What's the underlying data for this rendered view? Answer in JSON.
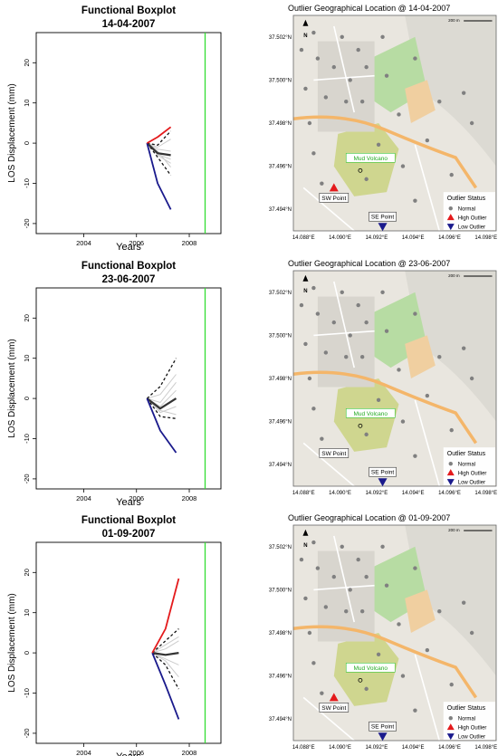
{
  "colors": {
    "high": "#e41a1c",
    "low": "#1a1a8c",
    "median": "#333333",
    "bound": "#111111",
    "curve": "#cccccc",
    "vline": "#33dd33",
    "map_land": "#e9e6df",
    "map_green": "#b7dca3",
    "map_olive": "#cfd68f",
    "map_orange": "#f0cfa0",
    "map_road": "#f4b66a",
    "normal_point": "#808080"
  },
  "chart_data": [
    {
      "type": "line",
      "title": "Functional Boxplot",
      "subtitle": "14-04-2007",
      "xlabel": "Years",
      "ylabel": "LOS Displacement (mm)",
      "xlim": [
        2002.2,
        2009.2
      ],
      "ylim": [
        -22.5,
        27.5
      ],
      "xticks": [
        "2004",
        "2006",
        "2008"
      ],
      "xtick_values": [
        2004,
        2006,
        2008
      ],
      "yticks": [
        "-20",
        "-10",
        "0",
        "10",
        "20"
      ],
      "ytick_values": [
        -20,
        -10,
        0,
        10,
        20
      ],
      "grid": false,
      "vline_x": 2008.6,
      "series": [
        {
          "role": "high",
          "x": [
            2006.4,
            2006.8,
            2007.3
          ],
          "y": [
            0,
            1.5,
            4
          ]
        },
        {
          "role": "low",
          "x": [
            2006.4,
            2006.8,
            2007.3
          ],
          "y": [
            0,
            -10,
            -16.5
          ]
        },
        {
          "role": "upper",
          "x": [
            2006.4,
            2006.8,
            2007.3
          ],
          "y": [
            0,
            -0.5,
            3
          ]
        },
        {
          "role": "lower",
          "x": [
            2006.4,
            2006.8,
            2007.3
          ],
          "y": [
            0,
            -3.5,
            -8
          ]
        },
        {
          "role": "median",
          "x": [
            2006.4,
            2006.8,
            2007.3
          ],
          "y": [
            0,
            -2.5,
            -3
          ]
        },
        {
          "role": "curve",
          "x": [
            2006.4,
            2006.8,
            2007.3
          ],
          "y": [
            0,
            -1.5,
            -2
          ]
        },
        {
          "role": "curve",
          "x": [
            2006.4,
            2006.8,
            2007.3
          ],
          "y": [
            0,
            -3,
            -5
          ]
        },
        {
          "role": "curve",
          "x": [
            2006.4,
            2006.8,
            2007.3
          ],
          "y": [
            0,
            -2,
            -6
          ]
        },
        {
          "role": "curve",
          "x": [
            2006.4,
            2006.8,
            2007.3
          ],
          "y": [
            0,
            -1,
            1
          ]
        },
        {
          "role": "curve",
          "x": [
            2006.4,
            2006.8,
            2007.3
          ],
          "y": [
            0,
            -2.8,
            -4
          ]
        }
      ]
    },
    {
      "type": "line",
      "title": "Functional Boxplot",
      "subtitle": "23-06-2007",
      "xlabel": "Years",
      "ylabel": "LOS Displacement (mm)",
      "xlim": [
        2002.2,
        2009.2
      ],
      "ylim": [
        -22.5,
        27.5
      ],
      "xticks": [
        "2004",
        "2006",
        "2008"
      ],
      "xtick_values": [
        2004,
        2006,
        2008
      ],
      "yticks": [
        "-20",
        "-10",
        "0",
        "10",
        "20"
      ],
      "ytick_values": [
        -20,
        -10,
        0,
        10,
        20
      ],
      "grid": false,
      "vline_x": 2008.6,
      "series": [
        {
          "role": "low",
          "x": [
            2006.4,
            2006.9,
            2007.5
          ],
          "y": [
            0,
            -8,
            -13.5
          ]
        },
        {
          "role": "upper",
          "x": [
            2006.4,
            2006.9,
            2007.5
          ],
          "y": [
            0,
            3,
            10
          ]
        },
        {
          "role": "lower",
          "x": [
            2006.4,
            2006.9,
            2007.5
          ],
          "y": [
            0,
            -4.5,
            -5
          ]
        },
        {
          "role": "median",
          "x": [
            2006.4,
            2006.9,
            2007.5
          ],
          "y": [
            0,
            -2.5,
            0
          ]
        },
        {
          "role": "curve",
          "x": [
            2006.4,
            2006.9,
            2007.5
          ],
          "y": [
            0,
            -1,
            4
          ]
        },
        {
          "role": "curve",
          "x": [
            2006.4,
            2006.9,
            2007.5
          ],
          "y": [
            0,
            -2,
            2
          ]
        },
        {
          "role": "curve",
          "x": [
            2006.4,
            2006.9,
            2007.5
          ],
          "y": [
            0,
            -3.5,
            -2
          ]
        },
        {
          "role": "curve",
          "x": [
            2006.4,
            2006.9,
            2007.5
          ],
          "y": [
            0,
            1,
            6
          ]
        },
        {
          "role": "curve",
          "x": [
            2006.4,
            2006.9,
            2007.5
          ],
          "y": [
            0,
            -3,
            -4
          ]
        }
      ]
    },
    {
      "type": "line",
      "title": "Functional Boxplot",
      "subtitle": "01-09-2007",
      "xlabel": "Years",
      "ylabel": "LOS Displacement (mm)",
      "xlim": [
        2002.2,
        2009.2
      ],
      "ylim": [
        -22.5,
        27.5
      ],
      "xticks": [
        "2004",
        "2006",
        "2008"
      ],
      "xtick_values": [
        2004,
        2006,
        2008
      ],
      "yticks": [
        "-20",
        "-10",
        "0",
        "10",
        "20"
      ],
      "ytick_values": [
        -20,
        -10,
        0,
        10,
        20
      ],
      "grid": false,
      "vline_x": 2008.6,
      "series": [
        {
          "role": "high",
          "x": [
            2006.6,
            2007.1,
            2007.6
          ],
          "y": [
            0,
            6,
            18.5
          ]
        },
        {
          "role": "low",
          "x": [
            2006.6,
            2007.1,
            2007.6
          ],
          "y": [
            0,
            -8,
            -16.5
          ]
        },
        {
          "role": "upper",
          "x": [
            2006.6,
            2007.1,
            2007.6
          ],
          "y": [
            0,
            3,
            6
          ]
        },
        {
          "role": "lower",
          "x": [
            2006.6,
            2007.1,
            2007.6
          ],
          "y": [
            0,
            -3,
            -9
          ]
        },
        {
          "role": "median",
          "x": [
            2006.6,
            2007.1,
            2007.6
          ],
          "y": [
            0,
            -0.5,
            0
          ]
        },
        {
          "role": "curve",
          "x": [
            2006.6,
            2007.1,
            2007.6
          ],
          "y": [
            0,
            1,
            3
          ]
        },
        {
          "role": "curve",
          "x": [
            2006.6,
            2007.1,
            2007.6
          ],
          "y": [
            0,
            -1.5,
            -3
          ]
        },
        {
          "role": "curve",
          "x": [
            2006.6,
            2007.1,
            2007.6
          ],
          "y": [
            0,
            -2,
            -6
          ]
        },
        {
          "role": "curve",
          "x": [
            2006.6,
            2007.1,
            2007.6
          ],
          "y": [
            0,
            2,
            4
          ]
        }
      ]
    }
  ],
  "maps": [
    {
      "title": "Outlier Geographical Location @ 14-04-2007",
      "high_outlier": true,
      "low_outlier": true
    },
    {
      "title": "Outlier Geographical Location @ 23-06-2007",
      "high_outlier": false,
      "low_outlier": true
    },
    {
      "title": "Outlier Geographical Location @ 01-09-2007",
      "high_outlier": true,
      "low_outlier": true
    }
  ],
  "map_common": {
    "lat_labels": [
      "37.502°N",
      "37.500°N",
      "37.498°N",
      "37.496°N",
      "37.494°N"
    ],
    "lon_labels": [
      "14.088°E",
      "14.090°E",
      "14.092°E",
      "14.094°E",
      "14.096°E",
      "14.098°E"
    ],
    "scale_text": "200 m",
    "north_text": "N",
    "mud_volcano": "Mud Volcano",
    "sw_point": "SW Point",
    "se_point": "SE Point",
    "legend": {
      "title": "Outlier Status",
      "items": [
        {
          "label": "Normal",
          "shape": "circle",
          "color": "#808080"
        },
        {
          "label": "High Outlier",
          "shape": "triangle-up",
          "color": "#e41a1c"
        },
        {
          "label": "Low Outlier",
          "shape": "triangle-down",
          "color": "#1a1a8c"
        }
      ]
    }
  }
}
